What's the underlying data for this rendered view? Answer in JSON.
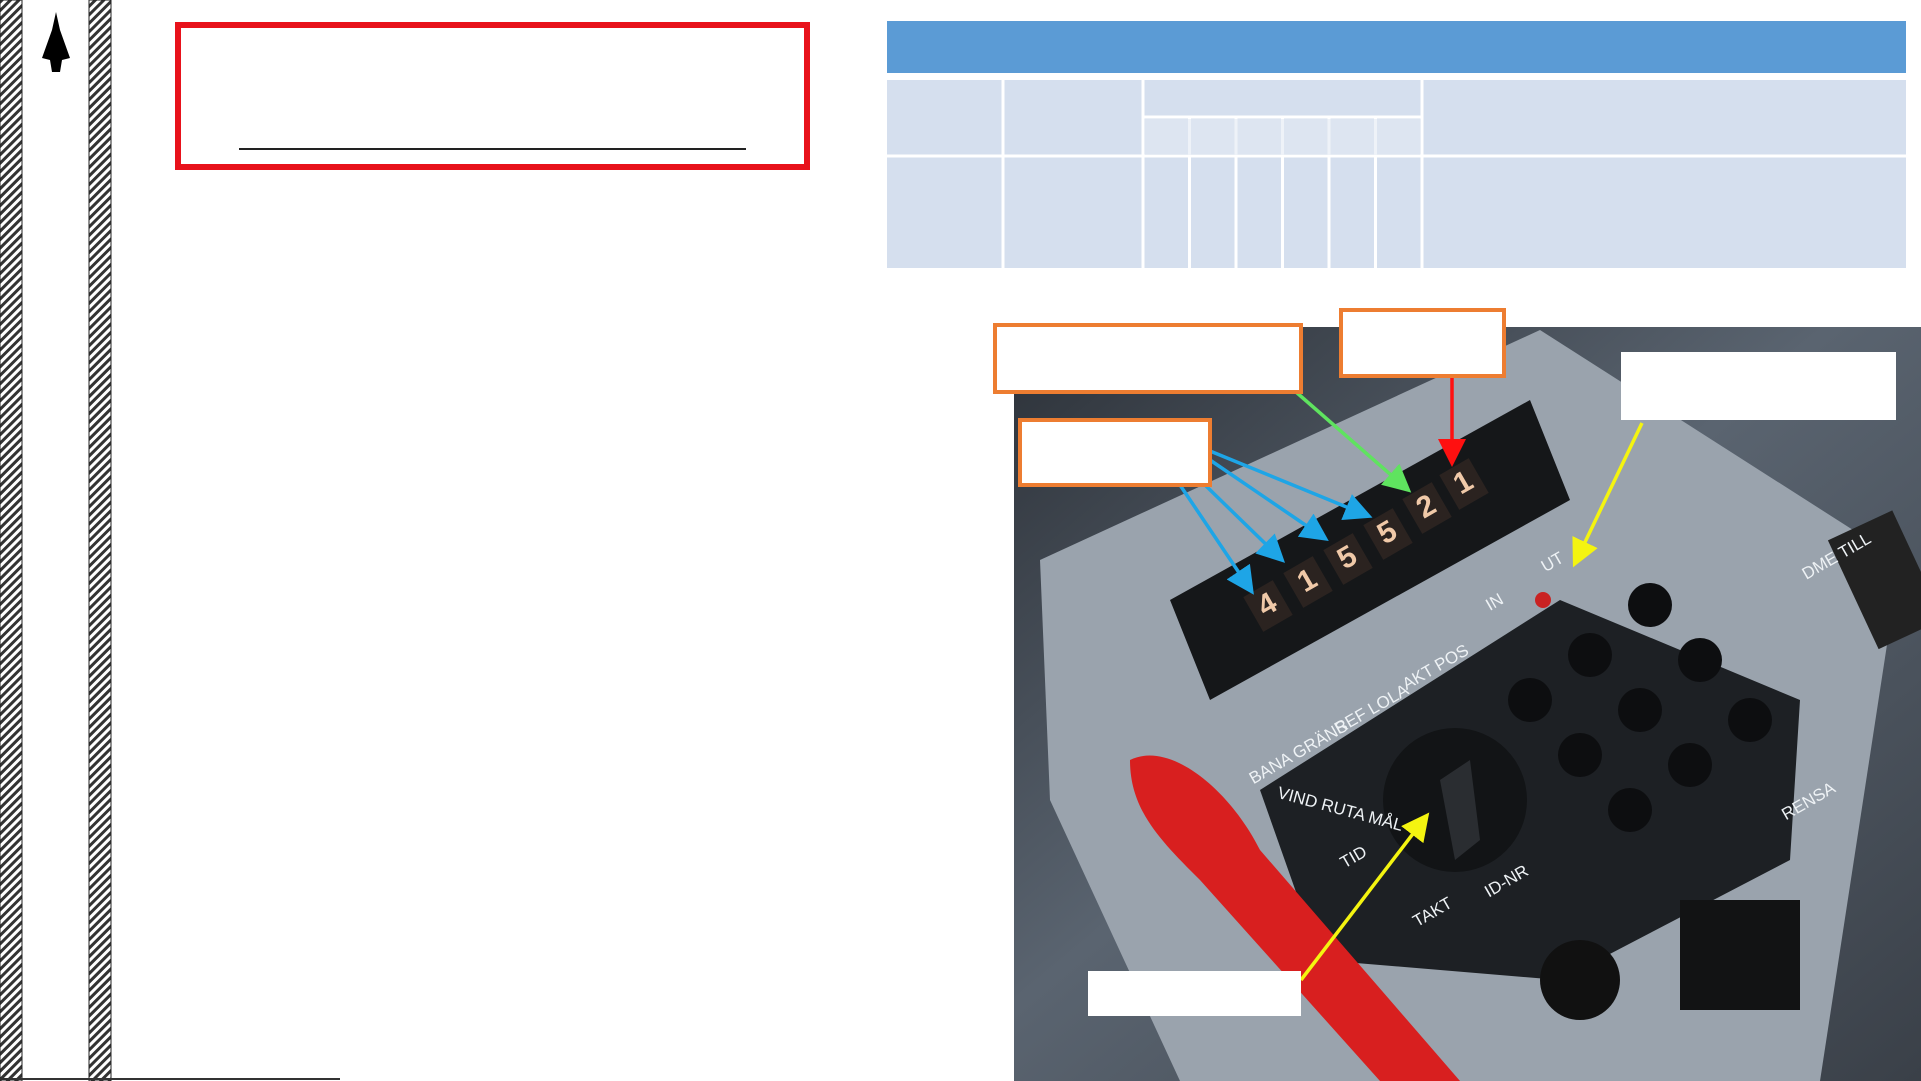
{
  "photo": {
    "display_digits": [
      "4",
      "1",
      "5",
      "5",
      "2",
      "1"
    ],
    "panel_labels": [
      "REF LOLA",
      "AKT POS",
      "BANA GRÄNS",
      "VIND RUTA MÅL",
      "TID",
      "TAKT",
      "ID-NR",
      "RENSA",
      "IN",
      "UT",
      "DME TILL"
    ]
  }
}
